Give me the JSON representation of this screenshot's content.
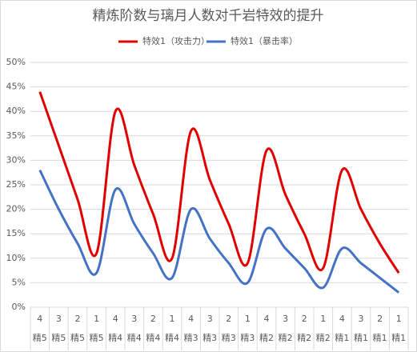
{
  "chart_data": {
    "type": "line",
    "title": "精炼阶数与璃月人数对千岩特效的提升",
    "categories": [
      "4",
      "3",
      "2",
      "1",
      "4",
      "3",
      "2",
      "1",
      "4",
      "3",
      "2",
      "1",
      "4",
      "3",
      "2",
      "1",
      "4",
      "3",
      "2",
      "1"
    ],
    "category_groups": [
      "精5",
      "精5",
      "精5",
      "精5",
      "精4",
      "精4",
      "精4",
      "精4",
      "精3",
      "精3",
      "精3",
      "精3",
      "精2",
      "精2",
      "精2",
      "精2",
      "精1",
      "精1",
      "精1",
      "精1"
    ],
    "series": [
      {
        "name": "特效1（攻击力）",
        "color": "#e00000",
        "values": [
          44,
          33,
          22,
          11,
          40,
          29,
          19,
          10,
          36,
          26,
          17,
          9,
          32,
          23,
          15,
          8,
          28,
          20,
          13,
          7
        ]
      },
      {
        "name": "特效1（暴击率）",
        "color": "#4472c4",
        "values": [
          28,
          20,
          13,
          7,
          24,
          17,
          11,
          6,
          20,
          14,
          9,
          5,
          16,
          12,
          8,
          4,
          12,
          9,
          6,
          3
        ]
      }
    ],
    "ylim": [
      0,
      50
    ],
    "yticks": [
      {
        "value": 0,
        "label": "0%"
      },
      {
        "value": 5,
        "label": "5%"
      },
      {
        "value": 10,
        "label": "10%"
      },
      {
        "value": 15,
        "label": "15%"
      },
      {
        "value": 20,
        "label": "20%"
      },
      {
        "value": 25,
        "label": "25%"
      },
      {
        "value": 30,
        "label": "30%"
      },
      {
        "value": 35,
        "label": "35%"
      },
      {
        "value": 40,
        "label": "40%"
      },
      {
        "value": 45,
        "label": "45%"
      },
      {
        "value": 50,
        "label": "50%"
      }
    ],
    "grid": true,
    "smooth": true,
    "legend": "top"
  }
}
